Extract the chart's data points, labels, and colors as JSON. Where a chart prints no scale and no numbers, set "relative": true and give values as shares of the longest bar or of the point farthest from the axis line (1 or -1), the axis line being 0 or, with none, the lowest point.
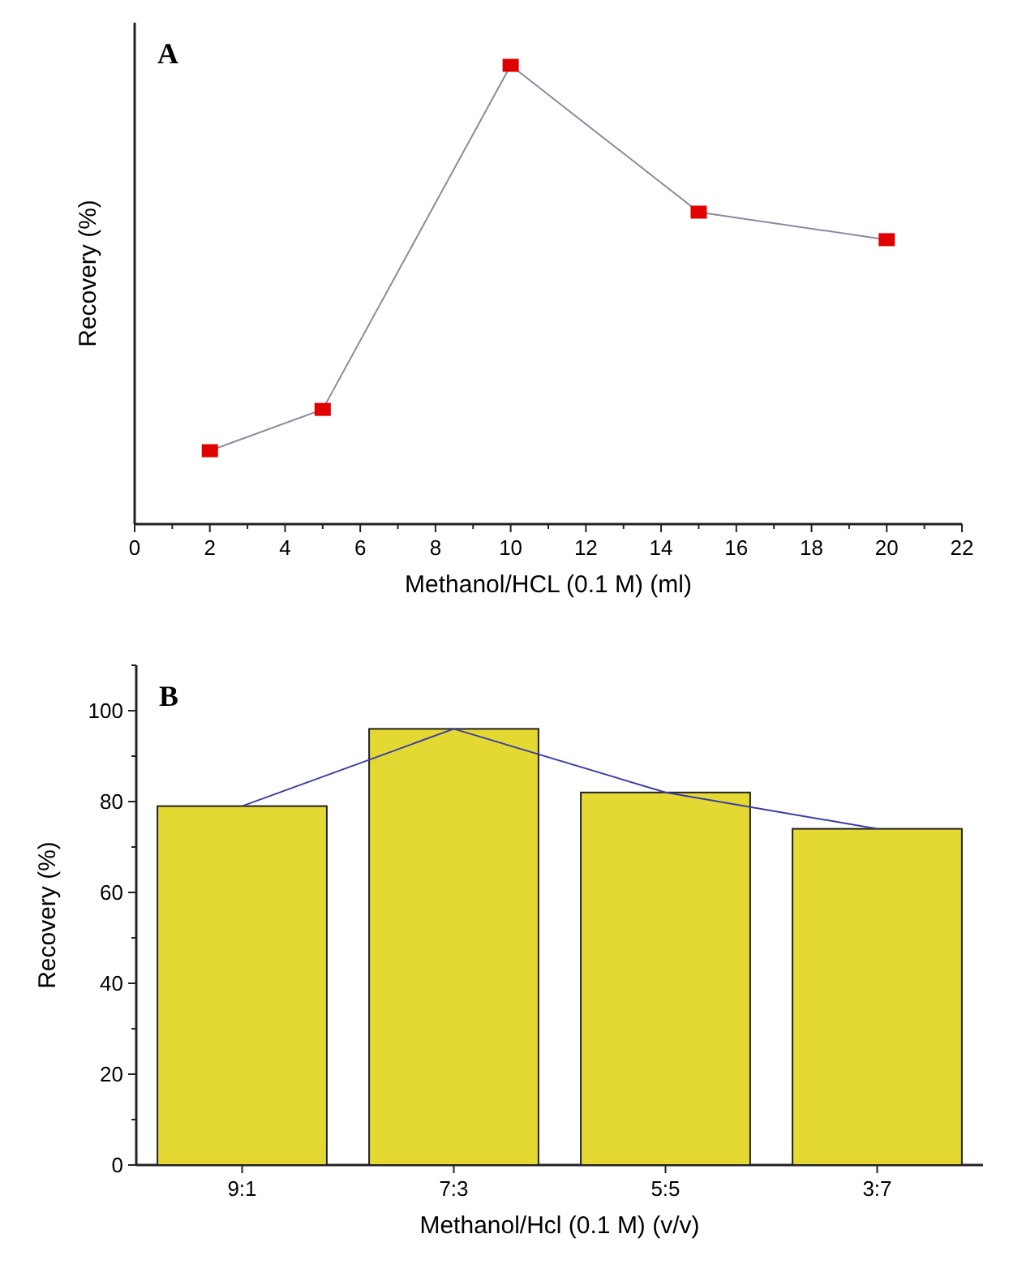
{
  "chart_data": [
    {
      "type": "line",
      "title": "A",
      "xlabel": "Methanol/HCL (0.1 M) (ml)",
      "ylabel": "Recovery (%)",
      "relative": true,
      "x": [
        2,
        5,
        10,
        15,
        20
      ],
      "xlim": [
        0,
        22
      ],
      "xticks": [
        0,
        {
          "value": 1,
          "label": null
        },
        2,
        {
          "value": 3,
          "label": null
        },
        4,
        {
          "value": 5,
          "label": null
        },
        6,
        {
          "value": 7,
          "label": null
        },
        8,
        {
          "value": 9,
          "label": null
        },
        10,
        {
          "value": 11,
          "label": null
        },
        12,
        {
          "value": 13,
          "label": null
        },
        14,
        {
          "value": 15,
          "label": null
        },
        16,
        {
          "value": 17,
          "label": null
        },
        18,
        {
          "value": 19,
          "label": null
        },
        20,
        {
          "value": 21,
          "label": null
        },
        22
      ],
      "marker": "square",
      "series": [
        {
          "color": "#e00000",
          "values": [
            0.16,
            0.25,
            1,
            0.68,
            0.62
          ]
        }
      ]
    },
    {
      "type": "bar",
      "title": "B",
      "xlabel": "Methanol/Hcl (0.1 M) (v/v)",
      "ylabel": "Recovery (%)",
      "categories": [
        "9:1",
        "7:3",
        "5:5",
        "3:7"
      ],
      "ylim": [
        0,
        110
      ],
      "yticks": [
        0,
        {
          "value": 10,
          "label": null
        },
        20,
        {
          "value": 30,
          "label": null
        },
        40,
        {
          "value": 50,
          "label": null
        },
        60,
        {
          "value": 70,
          "label": null
        },
        80,
        {
          "value": 90,
          "label": null
        },
        100,
        {
          "value": 110,
          "label": null
        }
      ],
      "series": [
        {
          "color": "#e3d932",
          "values": [
            79,
            96,
            82,
            74
          ]
        },
        {
          "type": "line",
          "color": "#3c3ca8",
          "values": [
            79,
            96,
            82,
            74
          ]
        }
      ]
    }
  ]
}
